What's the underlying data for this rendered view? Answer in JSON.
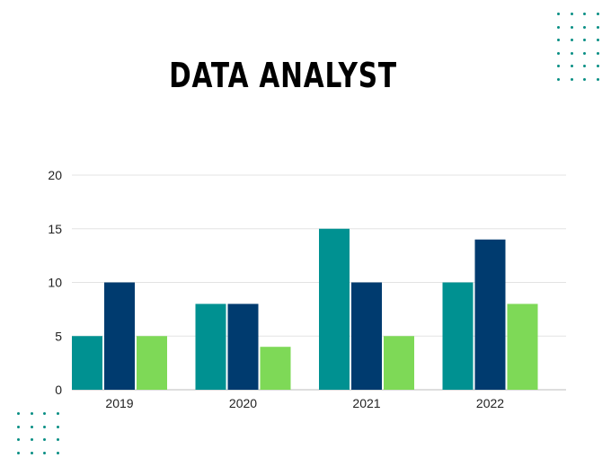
{
  "colors": {
    "series_1": "#009191",
    "series_2": "#003b6f",
    "series_3": "#7ed957",
    "dots": "#0a8f84"
  },
  "chart_data": {
    "type": "bar",
    "title": "DATA ANALYST",
    "categories": [
      "2019",
      "2020",
      "2021",
      "2022"
    ],
    "series": [
      {
        "values": [
          5,
          8,
          15,
          10
        ]
      },
      {
        "values": [
          10,
          8,
          10,
          14
        ]
      },
      {
        "values": [
          5,
          4,
          5,
          8
        ]
      }
    ],
    "ylim": [
      0,
      20
    ],
    "yticks": [
      0,
      5,
      10,
      15,
      20
    ],
    "grid": true,
    "legend": "none"
  }
}
